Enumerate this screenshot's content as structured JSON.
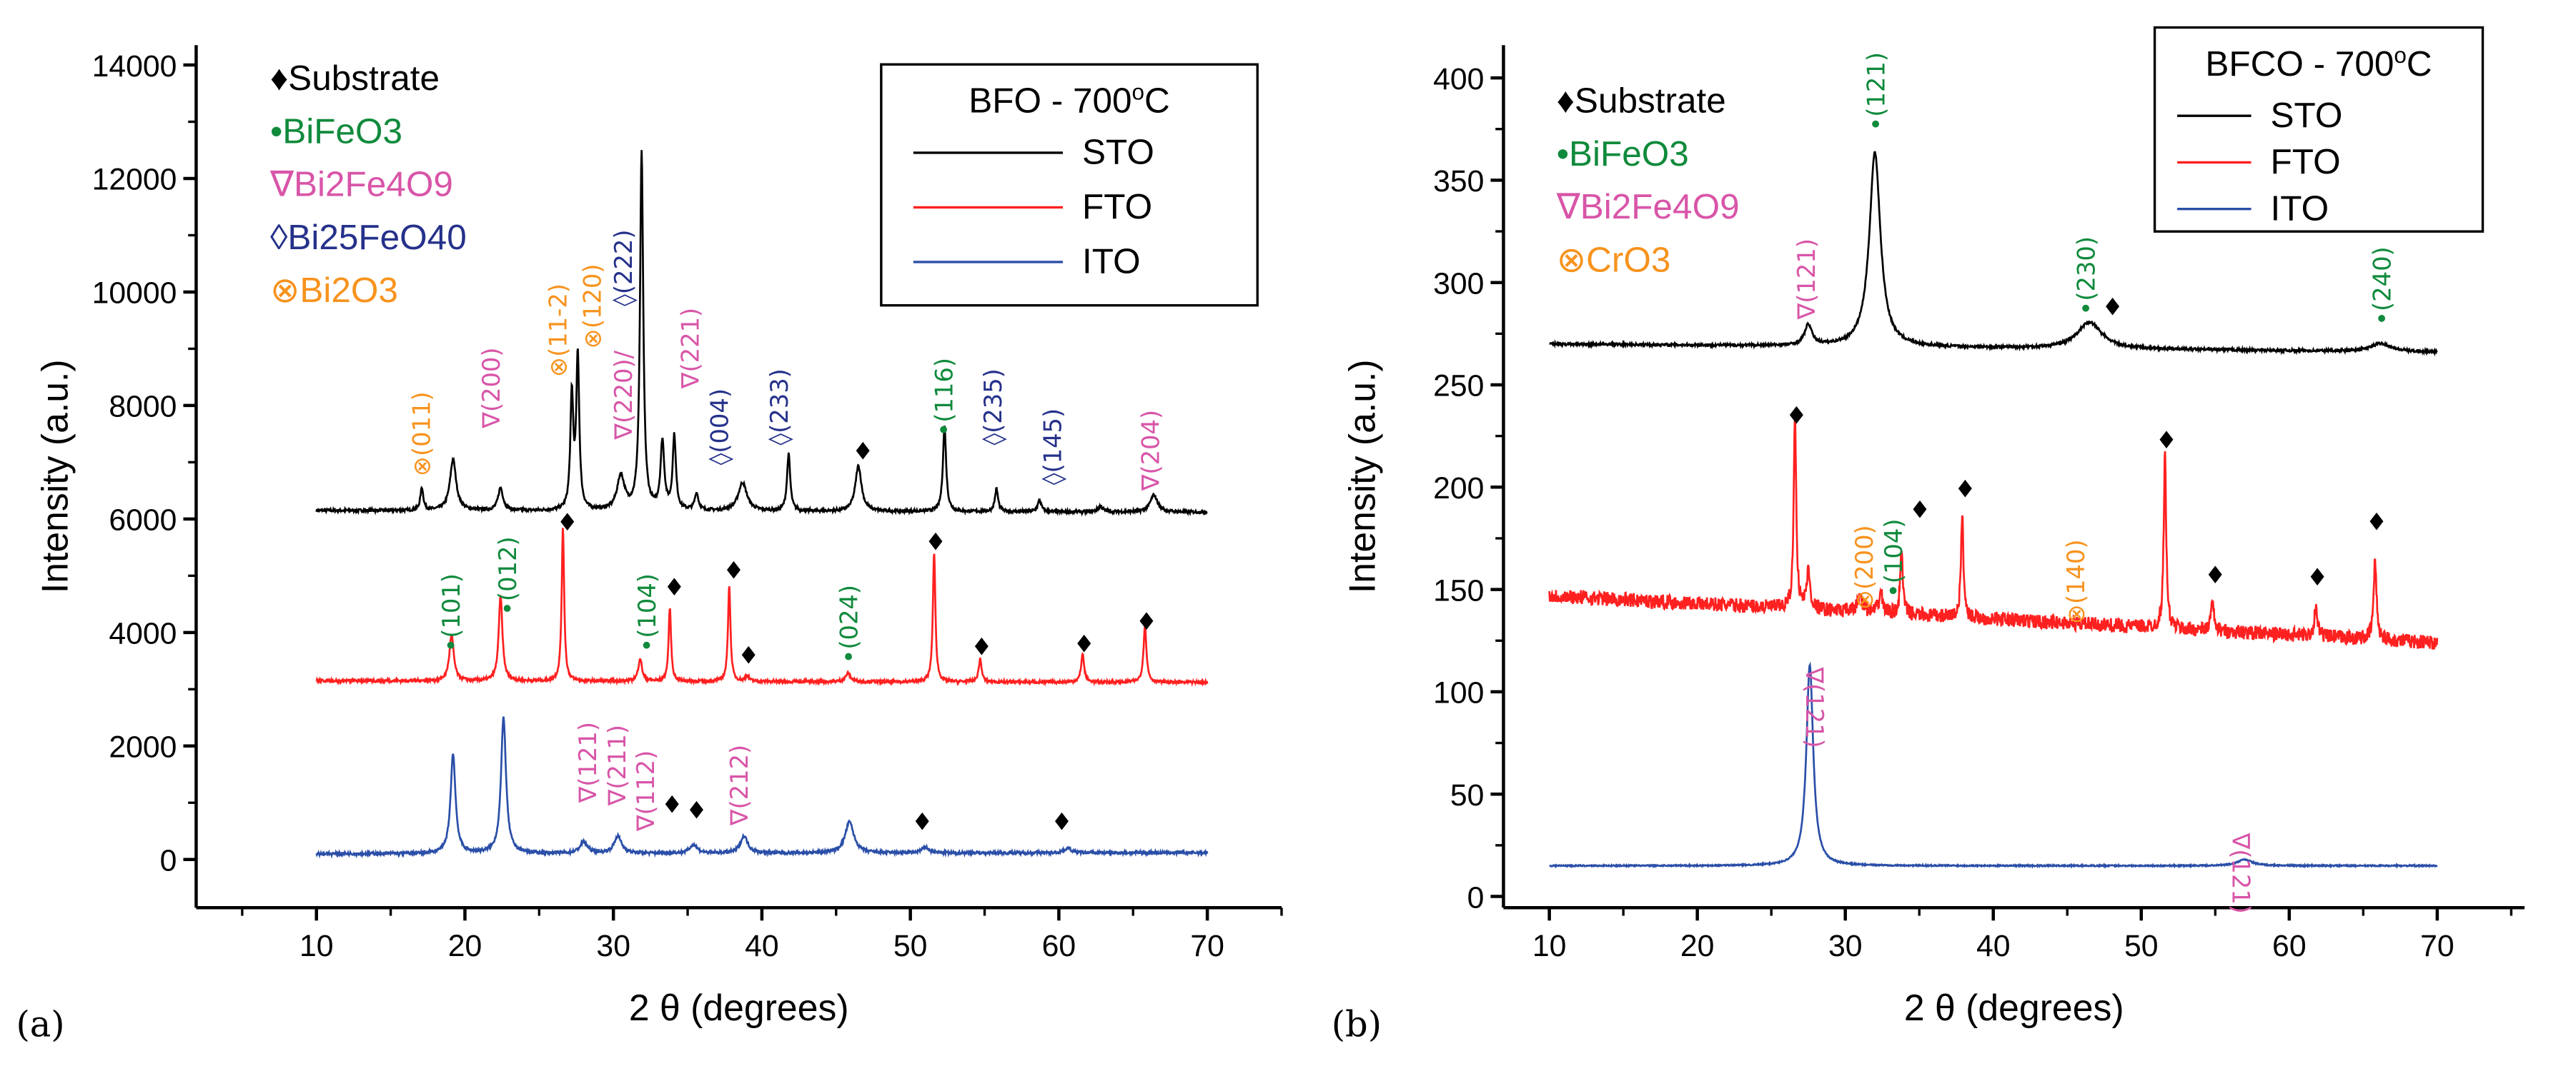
{
  "chart_data": [
    {
      "type": "line",
      "panel_label": "(a)",
      "xlabel": "2 θ (degrees)",
      "ylabel": "Intensity (a.u.)",
      "xlim": [
        1.9,
        75
      ],
      "ylim": [
        -850,
        14350
      ],
      "xticks": [
        10,
        20,
        30,
        40,
        50,
        60,
        70
      ],
      "yticks": [
        0,
        2000,
        4000,
        6000,
        8000,
        10000,
        12000,
        14000
      ],
      "legend": {
        "title_main": "BFO - 700",
        "title_sup": "o",
        "title_tail": "C",
        "placement": "top-right",
        "entries": [
          "STO",
          "FTO",
          "ITO"
        ]
      },
      "phase_key": [
        {
          "text": "♦Substrate",
          "color": "#000000"
        },
        {
          "text": "•BiFeO3",
          "color": "#108a3c"
        },
        {
          "text": "∇Bi2Fe4O9",
          "color": "#d855a8"
        },
        {
          "text": "◊Bi25FeO40",
          "color": "#25318a"
        },
        {
          "text": "⊗Bi2O3",
          "color": "#f7931e"
        }
      ],
      "series": [
        {
          "name": "STO",
          "color": "#000000",
          "baseline": [
            6150,
            6120
          ],
          "noise": 25,
          "peaks": [
            [
              17.1,
              400,
              0.12
            ],
            [
              19.2,
              900,
              0.25
            ],
            [
              22.4,
              400,
              0.2
            ],
            [
              27.2,
              2000,
              0.12
            ],
            [
              27.6,
              2700,
              0.12
            ],
            [
              30.5,
              600,
              0.3
            ],
            [
              31.9,
              6300,
              0.13
            ],
            [
              33.3,
              1200,
              0.15
            ],
            [
              34.1,
              1300,
              0.13
            ],
            [
              35.6,
              300,
              0.15
            ],
            [
              38.7,
              500,
              0.35
            ],
            [
              41.8,
              1000,
              0.13
            ],
            [
              46.5,
              800,
              0.25
            ],
            [
              52.3,
              1500,
              0.13
            ],
            [
              55.8,
              400,
              0.13
            ],
            [
              58.7,
              200,
              0.15
            ],
            [
              62.8,
              100,
              0.2
            ],
            [
              66.4,
              300,
              0.3
            ]
          ]
        },
        {
          "name": "FTO",
          "color": "#ff2020",
          "baseline": [
            3150,
            3120
          ],
          "noise": 25,
          "peaks": [
            [
              19.1,
              800,
              0.18
            ],
            [
              22.4,
              1500,
              0.15
            ],
            [
              26.6,
              2700,
              0.1
            ],
            [
              31.8,
              400,
              0.15
            ],
            [
              33.8,
              1300,
              0.1
            ],
            [
              37.8,
              1700,
              0.1
            ],
            [
              39.0,
              100,
              0.15
            ],
            [
              45.8,
              150,
              0.2
            ],
            [
              51.6,
              2300,
              0.1
            ],
            [
              54.7,
              400,
              0.12
            ],
            [
              61.6,
              500,
              0.12
            ],
            [
              65.8,
              1000,
              0.12
            ]
          ]
        },
        {
          "name": "ITO",
          "color": "#2b4fa8",
          "baseline": [
            100,
            120
          ],
          "noise": 25,
          "peaks": [
            [
              19.2,
              1750,
              0.2
            ],
            [
              22.6,
              2400,
              0.2
            ],
            [
              28.0,
              200,
              0.3
            ],
            [
              30.3,
              300,
              0.3
            ],
            [
              35.4,
              150,
              0.3
            ],
            [
              38.8,
              300,
              0.3
            ],
            [
              45.9,
              550,
              0.35
            ],
            [
              51.0,
              100,
              0.3
            ],
            [
              60.6,
              80,
              0.3
            ]
          ]
        }
      ],
      "annotations": [
        {
          "text": "⊗(011)",
          "x": 17.1,
          "y": 6750,
          "color": "#f7931e"
        },
        {
          "text": "∇(200)",
          "x": 21.8,
          "y": 7600,
          "color": "#d855a8"
        },
        {
          "text": "⊗(11-2)",
          "x": 26.3,
          "y": 8500,
          "color": "#f7931e"
        },
        {
          "text": "⊗(120)",
          "x": 28.6,
          "y": 9000,
          "color": "#f7931e"
        },
        {
          "text": "∇(220)/",
          "x": 30.7,
          "y": 7400,
          "color": "#d855a8"
        },
        {
          "text": "◊(222)",
          "x": 30.7,
          "y": 9750,
          "color": "#25318a"
        },
        {
          "text": "∇(221)",
          "x": 35.2,
          "y": 8300,
          "color": "#d855a8"
        },
        {
          "text": "◊(004)",
          "x": 36.8,
          "y": 6950,
          "color": "#25318a"
        },
        {
          "text": "◊(233)",
          "x": 41.2,
          "y": 7300,
          "color": "#25318a"
        },
        {
          "text": "♦",
          "x": 46.8,
          "y": 7050,
          "color": "#000000",
          "upright": true
        },
        {
          "text": "•(116)",
          "x": 52.3,
          "y": 7450,
          "color": "#108a3c"
        },
        {
          "text": "◊(235)",
          "x": 55.6,
          "y": 7300,
          "color": "#25318a"
        },
        {
          "text": "◊(145)",
          "x": 59.6,
          "y": 6600,
          "color": "#25318a"
        },
        {
          "text": "∇(204)",
          "x": 66.2,
          "y": 6500,
          "color": "#d855a8"
        },
        {
          "text": "•(101)",
          "x": 19.1,
          "y": 3650,
          "color": "#108a3c"
        },
        {
          "text": "•(012)",
          "x": 22.9,
          "y": 4300,
          "color": "#108a3c"
        },
        {
          "text": "♦",
          "x": 26.9,
          "y": 5800,
          "color": "#000000",
          "upright": true
        },
        {
          "text": "•(104)",
          "x": 32.3,
          "y": 3650,
          "color": "#108a3c"
        },
        {
          "text": "♦",
          "x": 34.1,
          "y": 4650,
          "color": "#000000",
          "upright": true
        },
        {
          "text": "♦",
          "x": 38.1,
          "y": 4950,
          "color": "#000000",
          "upright": true
        },
        {
          "text": "♦",
          "x": 39.1,
          "y": 3450,
          "color": "#000000",
          "upright": true
        },
        {
          "text": "•(024)",
          "x": 45.9,
          "y": 3450,
          "color": "#108a3c"
        },
        {
          "text": "♦",
          "x": 51.7,
          "y": 5450,
          "color": "#000000",
          "upright": true
        },
        {
          "text": "♦",
          "x": 54.8,
          "y": 3600,
          "color": "#000000",
          "upright": true
        },
        {
          "text": "♦",
          "x": 61.7,
          "y": 3650,
          "color": "#000000",
          "upright": true
        },
        {
          "text": "♦",
          "x": 65.9,
          "y": 4050,
          "color": "#000000",
          "upright": true
        },
        {
          "text": "∇(121)",
          "x": 28.3,
          "y": 1000,
          "color": "#d855a8"
        },
        {
          "text": "∇(211)",
          "x": 29.9,
          "y": 950,
          "color": "#d855a8"
        },
        {
          "text": "♦",
          "x": 30.8,
          "y": 820,
          "color": "#000000",
          "upright": true
        },
        {
          "text": "∇(112)",
          "x": 32.2,
          "y": 500,
          "color": "#d855a8"
        },
        {
          "text": "♦",
          "x": 35.6,
          "y": 720,
          "color": "#000000",
          "upright": true
        },
        {
          "text": "∇(212)",
          "x": 38.5,
          "y": 600,
          "color": "#d855a8"
        },
        {
          "text": "♦",
          "x": 50.8,
          "y": 520,
          "color": "#000000",
          "upright": true
        },
        {
          "text": "♦",
          "x": 60.2,
          "y": 520,
          "color": "#000000",
          "upright": true
        }
      ]
    },
    {
      "type": "line",
      "panel_label": "(b)",
      "xlabel": "2 θ (degrees)",
      "ylabel": "Intensity (a.u.)",
      "xlim": [
        6.9,
        75.9
      ],
      "ylim": [
        -5.5,
        416
      ],
      "xticks": [
        10,
        20,
        30,
        40,
        50,
        60,
        70
      ],
      "yticks": [
        0,
        50,
        100,
        150,
        200,
        250,
        300,
        350,
        400
      ],
      "legend": {
        "title_main": "BFCO - 700",
        "title_sup": "o",
        "title_tail": "C",
        "placement": "top-right",
        "entries": [
          "STO",
          "FTO",
          "ITO"
        ]
      },
      "phase_key": [
        {
          "text": "♦Substrate",
          "color": "#000000"
        },
        {
          "text": "•BiFeO3",
          "color": "#108a3c"
        },
        {
          "text": "∇Bi2Fe4O9",
          "color": "#d855a8"
        },
        {
          "text": "⊗CrO3",
          "color": "#f7931e"
        }
      ],
      "series": [
        {
          "name": "STO",
          "color": "#000000",
          "baseline": [
            270,
            266
          ],
          "noise": 0.6,
          "peaks": [
            [
              27.5,
              10,
              0.3
            ],
            [
              32.0,
              95,
              0.45
            ],
            [
              46.5,
              13,
              1.0
            ],
            [
              66.2,
              4,
              0.8
            ]
          ]
        },
        {
          "name": "FTO",
          "color": "#ff2020",
          "baseline": [
            147,
            124
          ],
          "noise": 3.5,
          "peaks": [
            [
              26.6,
              95,
              0.1
            ],
            [
              27.5,
              18,
              0.15
            ],
            [
              31.0,
              8,
              0.2
            ],
            [
              32.4,
              10,
              0.15
            ],
            [
              33.8,
              32,
              0.1
            ],
            [
              37.9,
              50,
              0.1
            ],
            [
              51.6,
              85,
              0.1
            ],
            [
              54.8,
              14,
              0.12
            ],
            [
              61.8,
              15,
              0.12
            ],
            [
              65.8,
              38,
              0.12
            ]
          ]
        },
        {
          "name": "ITO",
          "color": "#2b4fa8",
          "baseline": [
            15,
            15
          ],
          "noise": 0.3,
          "peaks": [
            [
              27.6,
              98,
              0.28
            ],
            [
              57.0,
              3,
              0.6
            ]
          ]
        }
      ],
      "annotations": [
        {
          "text": "∇(121)",
          "x": 27.4,
          "y": 282,
          "color": "#d855a8"
        },
        {
          "text": "•(121)",
          "x": 32.1,
          "y": 374,
          "color": "#108a3c"
        },
        {
          "text": "•(230)",
          "x": 46.3,
          "y": 284,
          "color": "#108a3c"
        },
        {
          "text": "♦",
          "x": 47.4,
          "y": 284,
          "color": "#000000",
          "upright": true
        },
        {
          "text": "•(240)",
          "x": 66.3,
          "y": 279,
          "color": "#108a3c"
        },
        {
          "text": "♦",
          "x": 26.7,
          "y": 231,
          "color": "#000000",
          "upright": true
        },
        {
          "text": "⊗(200)",
          "x": 31.3,
          "y": 140,
          "color": "#f7931e"
        },
        {
          "text": "•(104)",
          "x": 32.6,
          "y": 146,
          "color": "#108a3c"
        },
        {
          "text": "♦",
          "x": 34.1,
          "y": 185,
          "color": "#000000",
          "upright": true
        },
        {
          "text": "♦",
          "x": 38.1,
          "y": 195,
          "color": "#000000",
          "upright": true
        },
        {
          "text": "⊗(140)",
          "x": 45.6,
          "y": 133,
          "color": "#f7931e"
        },
        {
          "text": "♦",
          "x": 51.7,
          "y": 219,
          "color": "#000000",
          "upright": true
        },
        {
          "text": "♦",
          "x": 55.0,
          "y": 153,
          "color": "#000000",
          "upright": true
        },
        {
          "text": "♦",
          "x": 61.9,
          "y": 152,
          "color": "#000000",
          "upright": true
        },
        {
          "text": "♦",
          "x": 65.9,
          "y": 179,
          "color": "#000000",
          "upright": true
        },
        {
          "text": "∇(121)",
          "x": 27.9,
          "y": 112,
          "color": "#d855a8",
          "down": true
        },
        {
          "text": "∇(121)",
          "x": 56.7,
          "y": 31,
          "color": "#d855a8",
          "down": true
        }
      ]
    }
  ]
}
